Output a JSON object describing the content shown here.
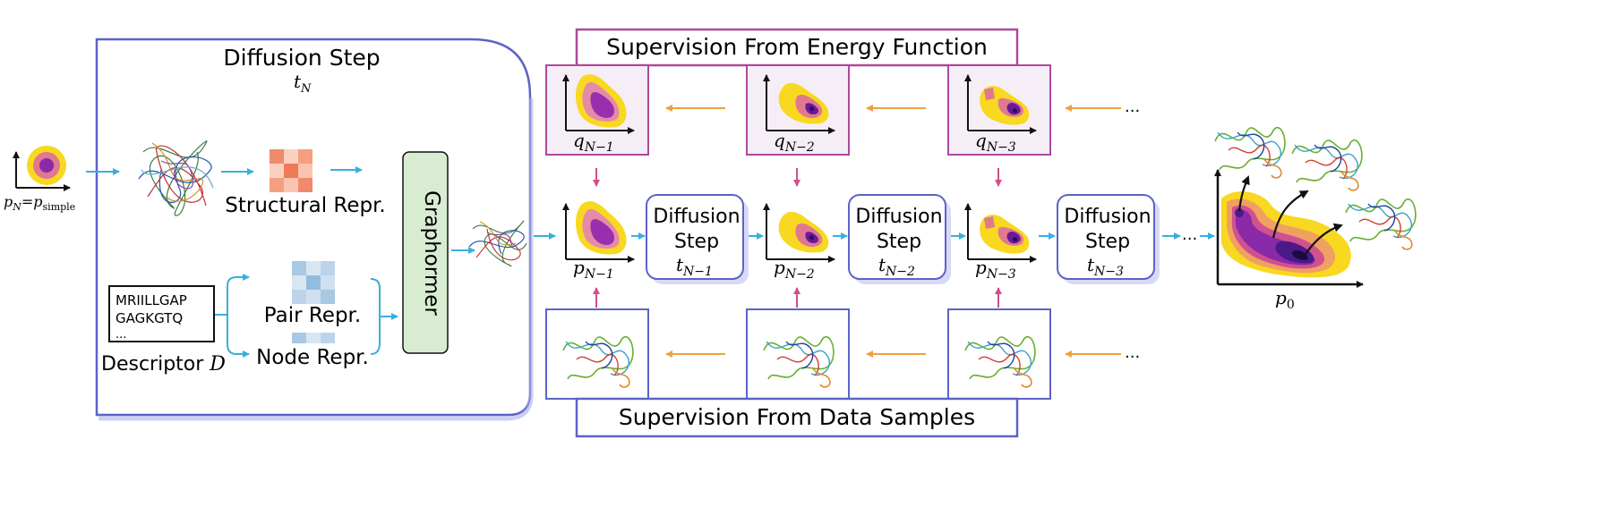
{
  "labels": {
    "diffusion_step_title": "Diffusion Step",
    "diffusion_step_time": "t",
    "diffusion_step_time_sub": "N",
    "p_initial": "p",
    "p_initial_sub": "N",
    "p_initial_eq": "=p",
    "p_initial_eq_sub": "simple",
    "structural_repr": "Structural Repr.",
    "pair_repr": "Pair Repr.",
    "node_repr": "Node Repr.",
    "descriptor_line1": "MRIILLGAP",
    "descriptor_line2": "GAGKGTQ",
    "descriptor_line3": "...",
    "descriptor_label": "Descriptor ",
    "descriptor_symbol": "D",
    "graphormer": "Graphormer",
    "supervision_energy": "Supervision From Energy Function",
    "supervision_data": "Supervision From Data Samples",
    "ellipsis": "...",
    "p_final": "p",
    "p_final_sub": "0"
  },
  "q_labels": [
    {
      "base": "q",
      "sub": "N−1"
    },
    {
      "base": "q",
      "sub": "N−2"
    },
    {
      "base": "q",
      "sub": "N−3"
    }
  ],
  "p_labels": [
    {
      "base": "p",
      "sub": "N−1"
    },
    {
      "base": "p",
      "sub": "N−2"
    },
    {
      "base": "p",
      "sub": "N−3"
    }
  ],
  "steps": [
    {
      "line1": "Diffusion",
      "line2": "Step",
      "t": "t",
      "sub": "N−1"
    },
    {
      "line1": "Diffusion",
      "line2": "Step",
      "t": "t",
      "sub": "N−2"
    },
    {
      "line1": "Diffusion",
      "line2": "Step",
      "t": "t",
      "sub": "N−3"
    }
  ],
  "colors": {
    "blue_frame": "#5b63c9",
    "magenta_frame": "#b0489a",
    "cyan_arrow": "#3aaee0",
    "orange_arrow": "#f0a040",
    "pink_arrow": "#d04f8a",
    "density_outer": "#f8d820",
    "density_mid": "#e07890",
    "density_inner": "#8a2aa8",
    "density_core": "#3a0a70",
    "graphormer_fill": "#d8ecd2"
  }
}
